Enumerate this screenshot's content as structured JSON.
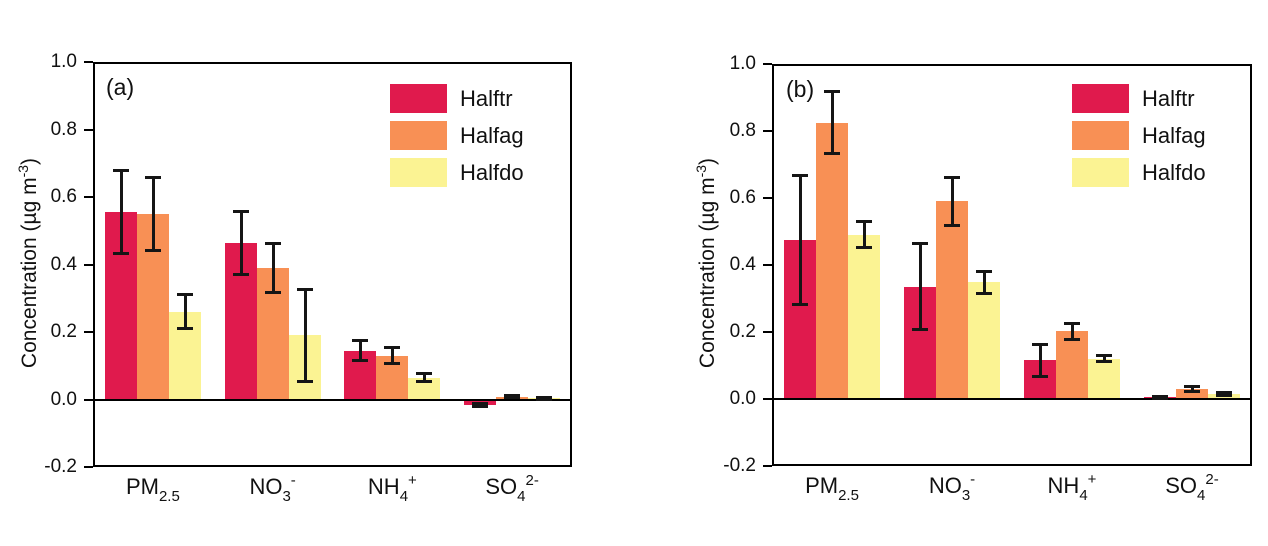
{
  "figure_title": "",
  "chart_data": [
    {
      "type": "bar",
      "panel_label": "(a)",
      "title": "",
      "xlabel": "",
      "ylabel": "Concentration (µg m-3)",
      "ylabel_parts": {
        "pre": "Concentration (µg m",
        "sup": "-3",
        "post": ")"
      },
      "ylim": [
        -0.2,
        1.0
      ],
      "yticks": [
        1.0,
        0.8,
        0.6,
        0.4,
        0.2,
        0.0,
        -0.2
      ],
      "grid": false,
      "legend_position": "upper right",
      "categories": [
        "PM2.5",
        "NO3-",
        "NH4+",
        "SO42-"
      ],
      "categories_rich": [
        {
          "base": "PM",
          "sub": "2.5",
          "sup": ""
        },
        {
          "base": "NO",
          "sub": "3",
          "sup": "-"
        },
        {
          "base": "NH",
          "sub": "4",
          "sup": "+"
        },
        {
          "base": "SO",
          "sub": "4",
          "sup": "2-"
        }
      ],
      "series": [
        {
          "name": "Halftr",
          "color": "#e01a4d",
          "values": [
            0.555,
            0.465,
            0.145,
            -0.015
          ],
          "errors": [
            0.125,
            0.095,
            0.03,
            0.006
          ]
        },
        {
          "name": "Halfag",
          "color": "#f89055",
          "values": [
            0.55,
            0.39,
            0.13,
            0.008
          ],
          "errors": [
            0.11,
            0.075,
            0.025,
            0.005
          ]
        },
        {
          "name": "Halfdo",
          "color": "#fbf393",
          "values": [
            0.26,
            0.19,
            0.065,
            0.003
          ],
          "errors": [
            0.052,
            0.138,
            0.014,
            0.004
          ]
        }
      ]
    },
    {
      "type": "bar",
      "panel_label": "(b)",
      "title": "",
      "xlabel": "",
      "ylabel": "Concentration (µg m-3)",
      "ylabel_parts": {
        "pre": "Concentration (µg m",
        "sup": "-3",
        "post": ")"
      },
      "ylim": [
        -0.2,
        1.0
      ],
      "yticks": [
        1.0,
        0.8,
        0.6,
        0.4,
        0.2,
        0.0,
        -0.2
      ],
      "grid": false,
      "legend_position": "upper right",
      "categories": [
        "PM2.5",
        "NO3-",
        "NH4+",
        "SO42-"
      ],
      "categories_rich": [
        {
          "base": "PM",
          "sub": "2.5",
          "sup": ""
        },
        {
          "base": "NO",
          "sub": "3",
          "sup": "-"
        },
        {
          "base": "NH",
          "sub": "4",
          "sup": "+"
        },
        {
          "base": "SO",
          "sub": "4",
          "sup": "2-"
        }
      ],
      "series": [
        {
          "name": "Halftr",
          "color": "#e01a4d",
          "values": [
            0.475,
            0.335,
            0.115,
            0.005
          ],
          "errors": [
            0.195,
            0.13,
            0.048,
            0.004
          ]
        },
        {
          "name": "Halfag",
          "color": "#f89055",
          "values": [
            0.825,
            0.59,
            0.202,
            0.03
          ],
          "errors": [
            0.095,
            0.073,
            0.025,
            0.01
          ]
        },
        {
          "name": "Halfdo",
          "color": "#fbf393",
          "values": [
            0.49,
            0.348,
            0.12,
            0.015
          ],
          "errors": [
            0.04,
            0.035,
            0.01,
            0.007
          ]
        }
      ]
    }
  ]
}
